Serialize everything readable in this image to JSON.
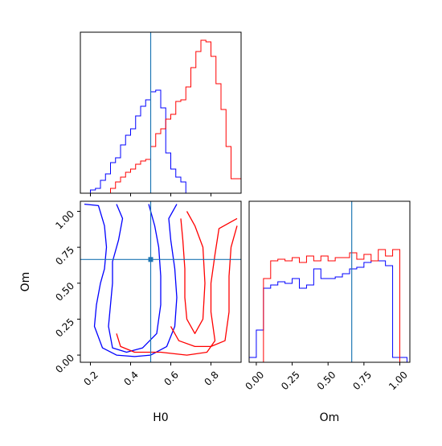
{
  "chart_data": {
    "type": "corner",
    "colors": {
      "series_a": "#0000ff",
      "series_b": "#ff0000",
      "truth": "#1f77b4"
    },
    "parameters": [
      {
        "name": "H0",
        "range": [
          0.15,
          0.95
        ],
        "ticks": [
          "0.2",
          "0.4",
          "0.6",
          "0.8"
        ],
        "truth": 0.5
      },
      {
        "name": "Om",
        "range": [
          -0.05,
          1.07
        ],
        "ticks": [
          "0.00",
          "0.25",
          "0.50",
          "0.75",
          "1.00"
        ],
        "truth": 0.665
      }
    ],
    "xlabels": [
      "H0",
      "Om"
    ],
    "ylabel_lower": "Om",
    "panels": [
      {
        "id": "hist-H0",
        "type": "histogram",
        "bin_edges": [
          0.15,
          0.175,
          0.2,
          0.225,
          0.25,
          0.275,
          0.3,
          0.325,
          0.35,
          0.375,
          0.4,
          0.425,
          0.45,
          0.475,
          0.5,
          0.525,
          0.55,
          0.575,
          0.6,
          0.625,
          0.65,
          0.675,
          0.7,
          0.725,
          0.75,
          0.775,
          0.8,
          0.825,
          0.85,
          0.875,
          0.9,
          0.925,
          0.95
        ],
        "series": [
          {
            "color_key": "series_a",
            "counts": [
              0,
              0,
              0.02,
              0.03,
              0.08,
              0.12,
              0.19,
              0.22,
              0.3,
              0.36,
              0.4,
              0.48,
              0.54,
              0.58,
              0.63,
              0.64,
              0.53,
              0.25,
              0.15,
              0.1,
              0.07,
              0,
              0,
              0,
              0,
              0,
              0,
              0,
              0,
              0,
              0,
              0
            ]
          },
          {
            "color_key": "series_b",
            "counts": [
              0,
              0,
              0,
              0,
              0,
              0,
              0.03,
              0.07,
              0.1,
              0.13,
              0.15,
              0.18,
              0.2,
              0.21,
              0.29,
              0.37,
              0.4,
              0.46,
              0.49,
              0.57,
              0.58,
              0.66,
              0.78,
              0.88,
              0.95,
              0.94,
              0.85,
              0.68,
              0.52,
              0.29,
              0.09,
              0.09
            ]
          }
        ]
      },
      {
        "id": "hist-Om",
        "type": "histogram",
        "bin_edges": [
          -0.05,
          0,
          0.05,
          0.1,
          0.15,
          0.2,
          0.25,
          0.3,
          0.35,
          0.4,
          0.45,
          0.5,
          0.55,
          0.6,
          0.65,
          0.7,
          0.75,
          0.8,
          0.85,
          0.9,
          0.95,
          1,
          1.05
        ],
        "series": [
          {
            "color_key": "series_a",
            "counts": [
              0.03,
              0.2,
              0.46,
              0.48,
              0.5,
              0.49,
              0.52,
              0.46,
              0.48,
              0.58,
              0.52,
              0.52,
              0.53,
              0.55,
              0.58,
              0.59,
              0.62,
              0.63,
              0.63,
              0.6,
              0.03,
              0.03
            ]
          },
          {
            "color_key": "series_b",
            "counts": [
              0,
              0,
              0.52,
              0.63,
              0.64,
              0.63,
              0.65,
              0.62,
              0.66,
              0.63,
              0.66,
              0.63,
              0.65,
              0.65,
              0.68,
              0.64,
              0.67,
              0.63,
              0.7,
              0.66,
              0.7,
              0
            ]
          }
        ]
      },
      {
        "id": "contour-H0-Om",
        "type": "contour",
        "note": "2D density contours",
        "series": [
          {
            "color_key": "series_a",
            "contours": [
              [
                [
                  0.17,
                  1.05
                ],
                [
                  0.24,
                  1.04
                ],
                [
                  0.27,
                  0.9
                ],
                [
                  0.28,
                  0.75
                ],
                [
                  0.27,
                  0.6
                ],
                [
                  0.25,
                  0.5
                ],
                [
                  0.23,
                  0.35
                ],
                [
                  0.22,
                  0.2
                ],
                [
                  0.26,
                  0.05
                ],
                [
                  0.33,
                  0.0
                ],
                [
                  0.42,
                  -0.01
                ],
                [
                  0.5,
                  0.0
                ],
                [
                  0.58,
                  0.06
                ],
                [
                  0.62,
                  0.2
                ],
                [
                  0.63,
                  0.4
                ],
                [
                  0.62,
                  0.6
                ],
                [
                  0.6,
                  0.8
                ],
                [
                  0.59,
                  0.95
                ],
                [
                  0.63,
                  1.05
                ]
              ],
              [
                [
                  0.33,
                  1.05
                ],
                [
                  0.36,
                  0.95
                ],
                [
                  0.34,
                  0.8
                ],
                [
                  0.31,
                  0.65
                ],
                [
                  0.31,
                  0.5
                ],
                [
                  0.3,
                  0.35
                ],
                [
                  0.29,
                  0.2
                ],
                [
                  0.31,
                  0.05
                ],
                [
                  0.38,
                  0.02
                ],
                [
                  0.46,
                  0.05
                ],
                [
                  0.53,
                  0.15
                ],
                [
                  0.55,
                  0.35
                ],
                [
                  0.55,
                  0.55
                ],
                [
                  0.54,
                  0.75
                ],
                [
                  0.52,
                  0.9
                ],
                [
                  0.49,
                  1.05
                ]
              ]
            ]
          },
          {
            "color_key": "series_b",
            "contours": [
              [
                [
                  0.33,
                  0.15
                ],
                [
                  0.35,
                  0.06
                ],
                [
                  0.42,
                  0.02
                ],
                [
                  0.55,
                  0.02
                ],
                [
                  0.68,
                  0.0
                ],
                [
                  0.78,
                  0.02
                ],
                [
                  0.82,
                  0.1
                ],
                [
                  0.8,
                  0.3
                ],
                [
                  0.8,
                  0.5
                ],
                [
                  0.82,
                  0.7
                ],
                [
                  0.84,
                  0.88
                ],
                [
                  0.93,
                  0.95
                ]
              ],
              [
                [
                  0.6,
                  0.2
                ],
                [
                  0.64,
                  0.1
                ],
                [
                  0.72,
                  0.06
                ],
                [
                  0.8,
                  0.06
                ],
                [
                  0.87,
                  0.1
                ],
                [
                  0.89,
                  0.3
                ],
                [
                  0.89,
                  0.55
                ],
                [
                  0.9,
                  0.75
                ],
                [
                  0.93,
                  0.9
                ]
              ],
              [
                [
                  0.65,
                  0.95
                ],
                [
                  0.66,
                  0.8
                ],
                [
                  0.67,
                  0.6
                ],
                [
                  0.67,
                  0.4
                ],
                [
                  0.68,
                  0.25
                ],
                [
                  0.72,
                  0.15
                ],
                [
                  0.76,
                  0.25
                ],
                [
                  0.77,
                  0.5
                ],
                [
                  0.76,
                  0.75
                ],
                [
                  0.72,
                  0.9
                ],
                [
                  0.68,
                  1.0
                ]
              ]
            ]
          }
        ]
      }
    ]
  }
}
